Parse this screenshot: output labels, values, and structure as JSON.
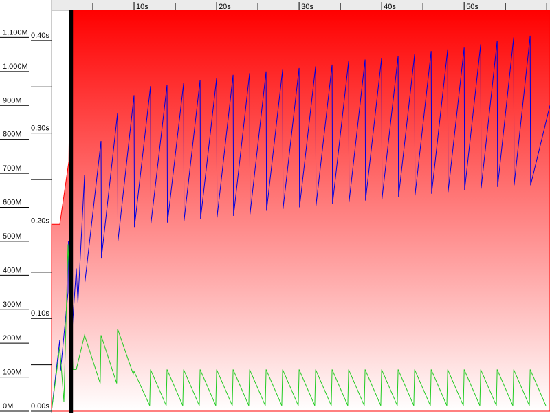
{
  "chart_data": {
    "type": "line",
    "xlim": [
      0,
      60.4
    ],
    "xticks": [
      {
        "value": 10,
        "label": "10s"
      },
      {
        "value": 20,
        "label": "20s"
      },
      {
        "value": 30,
        "label": "30s"
      },
      {
        "value": 40,
        "label": "40s"
      },
      {
        "value": 50,
        "label": "50s"
      }
    ],
    "xminor_ticks": [
      5,
      15,
      25,
      35,
      45,
      55,
      60
    ],
    "ylim": [
      0,
      1200
    ],
    "yticks": [
      {
        "value": 0,
        "label": "0M"
      },
      {
        "value": 100,
        "label": "100M"
      },
      {
        "value": 200,
        "label": "200M"
      },
      {
        "value": 300,
        "label": "300M"
      },
      {
        "value": 400,
        "label": "400M"
      },
      {
        "value": 500,
        "label": "500M"
      },
      {
        "value": 600,
        "label": "600M"
      },
      {
        "value": 700,
        "label": "700M"
      },
      {
        "value": 800,
        "label": "800M"
      },
      {
        "value": 900,
        "label": "900M"
      },
      {
        "value": 1000,
        "label": "1,000M"
      },
      {
        "value": 1100,
        "label": "1,100M"
      }
    ],
    "y2lim": [
      0,
      0.44
    ],
    "y2ticks": [
      {
        "value": 0,
        "label": "0.00s"
      },
      {
        "value": 0.1,
        "label": "0.10s"
      },
      {
        "value": 0.2,
        "label": "0.20s"
      },
      {
        "value": 0.3,
        "label": "0.30s"
      },
      {
        "value": 0.4,
        "label": "0.40s"
      }
    ],
    "y2minor_ticks": [
      0.05,
      0.15,
      0.25,
      0.35
    ],
    "series": [
      {
        "kind": "area",
        "color": "#ff0000",
        "x": [
          0,
          1,
          2.1,
          2.3,
          60.4
        ],
        "values": [
          550,
          550,
          735,
          1180,
          1180
        ]
      },
      {
        "kind": "line",
        "color": "#0000dd",
        "x": [
          0,
          1,
          1.1,
          2,
          2.05,
          2.5,
          3,
          3.2,
          4,
          4.05,
          6,
          6.05,
          8,
          8.05,
          10,
          10.05,
          12,
          12.05,
          14,
          14.05,
          16,
          16.05,
          18,
          18.05,
          20,
          20.05,
          22,
          22.05,
          24,
          24.05,
          26,
          26.05,
          28,
          28.05,
          30,
          30.05,
          32,
          32.05,
          34,
          34.05,
          36,
          36.05,
          38,
          38.05,
          40,
          40.05,
          42,
          42.05,
          44,
          44.05,
          46,
          46.05,
          48,
          48.05,
          50,
          50.05,
          52,
          52.05,
          54,
          54.05,
          56,
          56.05,
          58,
          58.05,
          60.4
        ],
        "values": [
          0,
          210,
          120,
          350,
          500,
          240,
          420,
          320,
          694,
          380,
          795,
          451,
          877,
          500,
          930,
          542,
          957,
          552,
          960,
          555,
          965,
          560,
          975,
          565,
          980,
          570,
          990,
          575,
          995,
          580,
          1000,
          590,
          1005,
          595,
          1010,
          600,
          1015,
          605,
          1020,
          610,
          1030,
          615,
          1035,
          620,
          1040,
          625,
          1045,
          630,
          1050,
          635,
          1060,
          640,
          1065,
          645,
          1070,
          650,
          1080,
          655,
          1090,
          660,
          1100,
          665,
          1105,
          665,
          900
        ]
      },
      {
        "kind": "line",
        "color": "#22cc22",
        "axis": "y2",
        "x": [
          0,
          1,
          1.5,
          2,
          2.6,
          3,
          4,
          5.9,
          6,
          7.9,
          8,
          9.9,
          10,
          11.9,
          12,
          13.9,
          14,
          15.9,
          16,
          17.9,
          18,
          19.9,
          20,
          21.9,
          22,
          23.9,
          24,
          25.9,
          26,
          27.9,
          28,
          29.9,
          30,
          31.9,
          32,
          33.9,
          34,
          35.9,
          36,
          37.9,
          38,
          39.9,
          40,
          41.9,
          42,
          43.9,
          44,
          45.9,
          46,
          47.9,
          48,
          49.9,
          50,
          51.9,
          52,
          53.9,
          54,
          55.9,
          56,
          57.9,
          58,
          59.9
        ],
        "values": [
          0,
          0.069,
          0.01,
          0.18,
          0.045,
          0.045,
          0.082,
          0.03,
          0.082,
          0.03,
          0.089,
          0.04,
          0.043,
          0.006,
          0.045,
          0.006,
          0.045,
          0.006,
          0.045,
          0.006,
          0.045,
          0.006,
          0.045,
          0.006,
          0.045,
          0.006,
          0.045,
          0.006,
          0.045,
          0.006,
          0.045,
          0.006,
          0.045,
          0.006,
          0.045,
          0.006,
          0.045,
          0.006,
          0.045,
          0.006,
          0.045,
          0.006,
          0.045,
          0.006,
          0.045,
          0.006,
          0.045,
          0.006,
          0.045,
          0.006,
          0.045,
          0.006,
          0.045,
          0.006,
          0.045,
          0.006,
          0.045,
          0.006,
          0.045,
          0.006,
          0.045,
          0.006
        ]
      }
    ],
    "markers": [
      {
        "x0": 2.1,
        "x1": 2.6,
        "color": "#000000"
      }
    ]
  }
}
